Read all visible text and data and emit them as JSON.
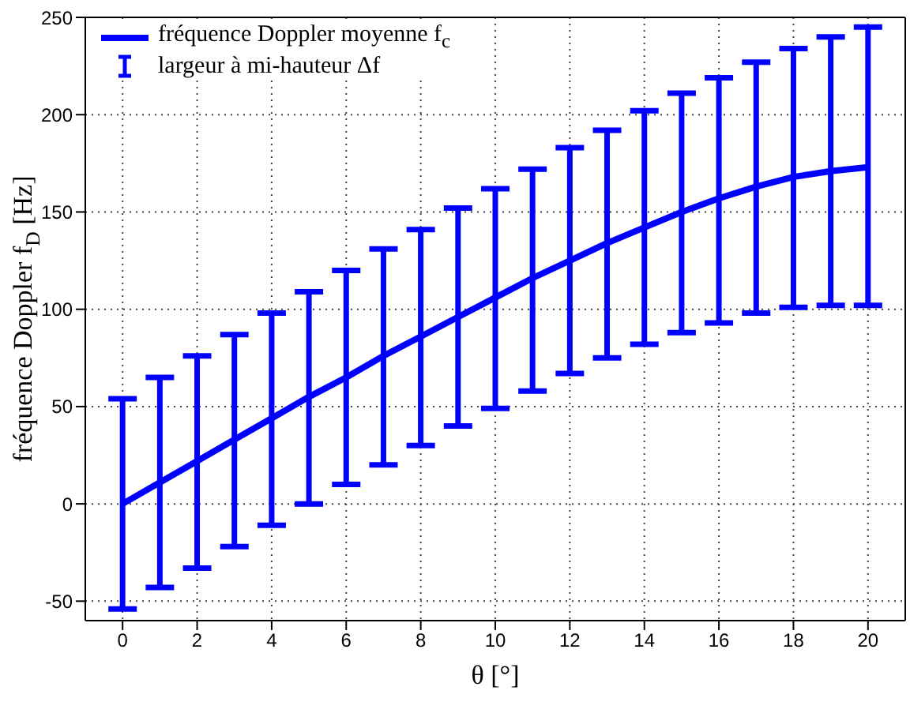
{
  "chart_data": {
    "type": "line",
    "xlabel": "θ [°]",
    "ylabel": "fréquence Doppler f$_{D}$ [Hz]",
    "x": [
      0,
      1,
      2,
      3,
      4,
      5,
      6,
      7,
      8,
      9,
      10,
      11,
      12,
      13,
      14,
      15,
      16,
      17,
      18,
      19,
      20
    ],
    "series": [
      {
        "name": "fréquence Doppler moyenne f$_{c}$",
        "color": "#0000ff",
        "values": [
          0,
          11,
          22,
          33,
          44,
          55,
          65,
          76,
          86,
          96,
          106,
          116,
          125,
          134,
          142,
          150,
          157,
          163,
          168,
          171,
          173
        ],
        "errors": [
          [
            -54,
            54
          ],
          [
            -43,
            65
          ],
          [
            -33,
            76
          ],
          [
            -22,
            87
          ],
          [
            -11,
            98
          ],
          [
            0,
            109
          ],
          [
            10,
            120
          ],
          [
            20,
            131
          ],
          [
            30,
            141
          ],
          [
            40,
            152
          ],
          [
            49,
            162
          ],
          [
            58,
            172
          ],
          [
            67,
            183
          ],
          [
            75,
            192
          ],
          [
            82,
            202
          ],
          [
            88,
            211
          ],
          [
            93,
            219
          ],
          [
            98,
            227
          ],
          [
            101,
            234
          ],
          [
            102,
            240
          ],
          [
            102,
            245
          ]
        ]
      }
    ],
    "annotations": [
      "largeur à mi-hauteur Δf"
    ],
    "xlim": [
      -1,
      21
    ],
    "xticks": [
      0,
      2,
      4,
      6,
      8,
      10,
      12,
      14,
      16,
      18,
      20
    ],
    "ylim": [
      -60,
      250
    ],
    "yticks": [
      -50,
      0,
      50,
      100,
      150,
      200,
      250
    ],
    "grid": true,
    "legend": "top left",
    "marker": "none",
    "line_style": "solid"
  }
}
